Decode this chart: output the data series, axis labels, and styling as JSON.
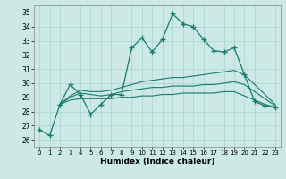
{
  "xlabel": "Humidex (Indice chaleur)",
  "bg_color": "#cce9e5",
  "grid_color": "#aad4cf",
  "line_color": "#1a7a6e",
  "xlim": [
    -0.5,
    23.5
  ],
  "ylim": [
    25.5,
    35.5
  ],
  "yticks": [
    26,
    27,
    28,
    29,
    30,
    31,
    32,
    33,
    34,
    35
  ],
  "xticks": [
    0,
    1,
    2,
    3,
    4,
    5,
    6,
    7,
    8,
    9,
    10,
    11,
    12,
    13,
    14,
    15,
    16,
    17,
    18,
    19,
    20,
    21,
    22,
    23
  ],
  "series_main": [
    26.7,
    26.3,
    28.5,
    29.9,
    29.2,
    27.8,
    28.5,
    29.2,
    29.2,
    32.5,
    33.2,
    32.2,
    33.1,
    34.9,
    34.2,
    34.0,
    33.1,
    32.3,
    32.2,
    32.5,
    30.6,
    28.7,
    28.4,
    28.3
  ],
  "series_line1": [
    null,
    null,
    28.5,
    28.8,
    28.9,
    28.9,
    28.9,
    28.9,
    29.0,
    29.0,
    29.1,
    29.1,
    29.2,
    29.2,
    29.3,
    29.3,
    29.3,
    29.3,
    29.4,
    29.4,
    29.1,
    28.8,
    28.5,
    28.3
  ],
  "series_line2": [
    null,
    null,
    28.5,
    29.0,
    29.3,
    29.2,
    29.1,
    29.2,
    29.4,
    29.5,
    29.6,
    29.7,
    29.7,
    29.8,
    29.8,
    29.8,
    29.9,
    29.9,
    30.0,
    30.1,
    29.9,
    29.4,
    28.9,
    28.4
  ],
  "series_line3": [
    null,
    null,
    28.5,
    29.1,
    29.5,
    29.4,
    29.4,
    29.5,
    29.7,
    29.9,
    30.1,
    30.2,
    30.3,
    30.4,
    30.4,
    30.5,
    30.6,
    30.7,
    30.8,
    30.9,
    30.6,
    29.9,
    29.2,
    28.5
  ]
}
